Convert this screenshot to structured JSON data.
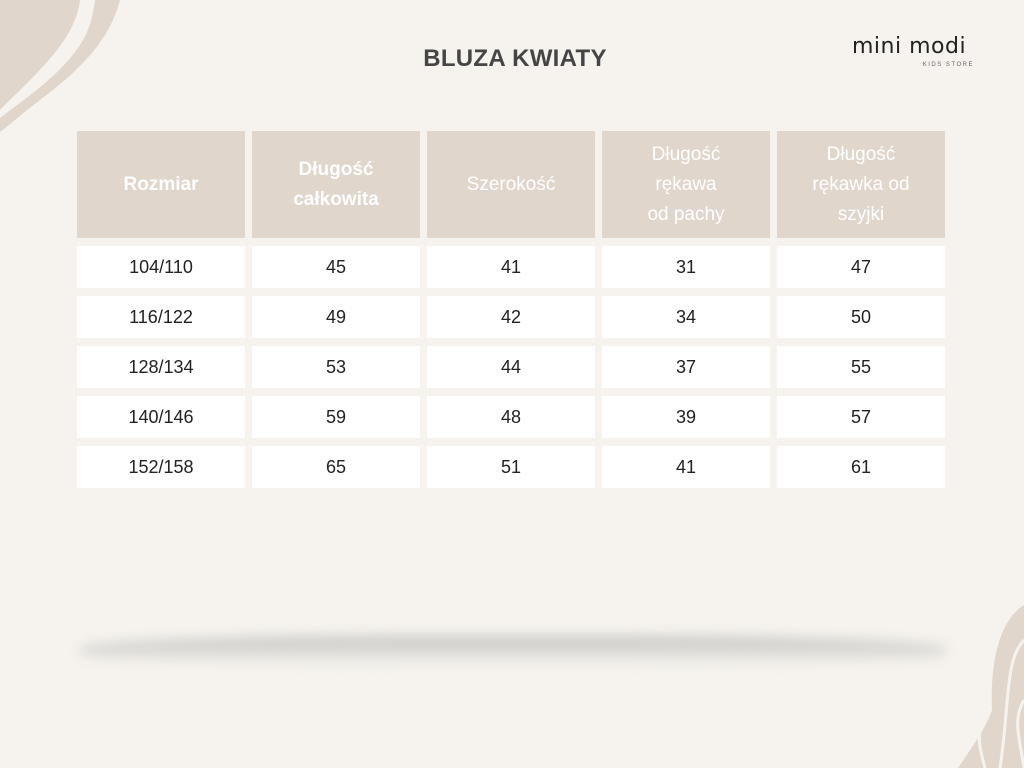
{
  "title": "BLUZA KWIATY",
  "logo": {
    "main": "mini modi",
    "sub": "KIDS STORE"
  },
  "colors": {
    "background": "#f6f3ee",
    "header": "#e0d6cc",
    "title": "#454545"
  },
  "table": {
    "headers": [
      "Rozmiar",
      "Długość\ncałkowita",
      "Szerokość",
      "Długość\nrękawa\nod pachy",
      "Długość\nrękawka od\nszyjki"
    ],
    "rows": [
      [
        "104/110",
        "45",
        "41",
        "31",
        "47"
      ],
      [
        "116/122",
        "49",
        "42",
        "34",
        "50"
      ],
      [
        "128/134",
        "53",
        "44",
        "37",
        "55"
      ],
      [
        "140/146",
        "59",
        "48",
        "39",
        "57"
      ],
      [
        "152/158",
        "65",
        "51",
        "41",
        "61"
      ]
    ]
  }
}
